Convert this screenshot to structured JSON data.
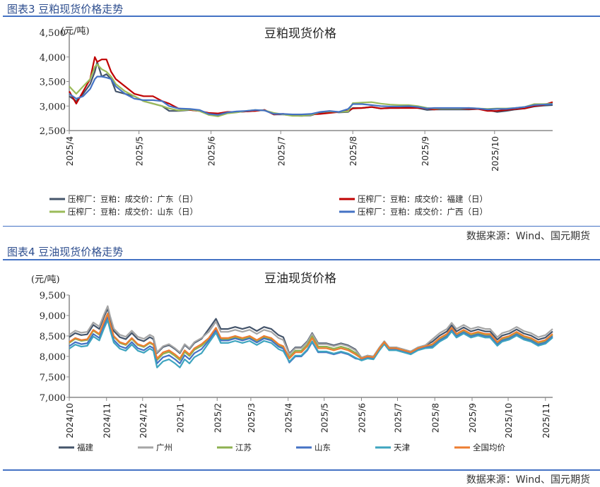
{
  "fig3": {
    "title": "图表3 豆粕现货价格走势",
    "source": "数据来源：Wind、国元期货"
  },
  "fig4": {
    "title": "图表4 豆油现货价格走势",
    "source": "数据来源：Wind、国元期货"
  },
  "chart_data": [
    {
      "type": "line",
      "title": "豆粕现货价格",
      "ylabel": "(元/吨)",
      "ylim": [
        2500,
        4500
      ],
      "yticks": [
        2500,
        3000,
        3500,
        4000,
        4500
      ],
      "ytick_labels": [
        "2,500",
        "3,000",
        "3,500",
        "4,000",
        "4,500"
      ],
      "x_unit": "days since 2025-04-01",
      "xlim": [
        0,
        208
      ],
      "xticks": [
        0,
        30,
        61,
        91,
        122,
        153,
        183
      ],
      "xtick_labels": [
        "2025/4",
        "2025/5",
        "2025/6",
        "2025/7",
        "2025/8",
        "2025/9",
        "2025/10"
      ],
      "legend_position": "bottom",
      "x": [
        0,
        3,
        6,
        9,
        11,
        12,
        14,
        16,
        18,
        20,
        24,
        28,
        32,
        36,
        40,
        43,
        47,
        52,
        56,
        60,
        64,
        68,
        72,
        76,
        80,
        84,
        88,
        92,
        96,
        100,
        104,
        108,
        112,
        116,
        120,
        122,
        126,
        130,
        134,
        138,
        142,
        146,
        150,
        154,
        157,
        160,
        164,
        168,
        172,
        176,
        180,
        184,
        188,
        192,
        196,
        200,
        204,
        208
      ],
      "series": [
        {
          "name": "压榨厂：豆粕：成交价：广东（日）",
          "color": "#44546a",
          "values": [
            3200,
            3100,
            3250,
            3450,
            3700,
            3900,
            3600,
            3650,
            3550,
            3300,
            3250,
            3200,
            3100,
            3050,
            3000,
            2900,
            2900,
            2920,
            2900,
            2830,
            2800,
            2860,
            2880,
            2890,
            2900,
            2920,
            2830,
            2830,
            2810,
            2800,
            2810,
            2870,
            2890,
            2870,
            2880,
            2960,
            2960,
            2980,
            2950,
            2960,
            2960,
            2980,
            2960,
            2920,
            2930,
            2930,
            2930,
            2930,
            2930,
            2940,
            2920,
            2880,
            2900,
            2930,
            2950,
            2990,
            3010,
            3020
          ]
        },
        {
          "name": "压榨厂：豆粕：成交价：福建（日）",
          "color": "#c00000",
          "values": [
            3300,
            3050,
            3300,
            3550,
            4000,
            3900,
            3950,
            3950,
            3700,
            3550,
            3400,
            3250,
            3200,
            3200,
            3100,
            3050,
            2950,
            2920,
            2900,
            2860,
            2850,
            2880,
            2880,
            2890,
            2900,
            2920,
            2830,
            2840,
            2820,
            2820,
            2830,
            2840,
            2860,
            2880,
            2900,
            2950,
            2960,
            2980,
            2950,
            2960,
            2960,
            2960,
            2960,
            2950,
            2930,
            2950,
            2950,
            2950,
            2940,
            2940,
            2900,
            2900,
            2920,
            2940,
            2950,
            3000,
            3020,
            3080
          ]
        },
        {
          "name": "压榨厂：豆粕：成交价：山东（日）",
          "color": "#9bbb59",
          "values": [
            3400,
            3250,
            3400,
            3550,
            3800,
            3850,
            3750,
            3700,
            3600,
            3450,
            3300,
            3200,
            3100,
            3050,
            3000,
            2950,
            2910,
            2930,
            2900,
            2820,
            2790,
            2850,
            2870,
            2900,
            2920,
            2910,
            2860,
            2830,
            2800,
            2800,
            2820,
            2880,
            2890,
            2880,
            2890,
            3060,
            3070,
            3080,
            3050,
            3030,
            3020,
            3020,
            3000,
            2960,
            2950,
            2950,
            2950,
            2950,
            2960,
            2950,
            2940,
            2950,
            2950,
            2960,
            2980,
            3040,
            3040,
            3050
          ]
        },
        {
          "name": "压榨厂：豆粕：成交价：广西（日）",
          "color": "#4472c4",
          "values": [
            3250,
            3150,
            3200,
            3350,
            3550,
            3600,
            3600,
            3580,
            3550,
            3400,
            3250,
            3150,
            3120,
            3120,
            3100,
            3000,
            2950,
            2940,
            2920,
            2840,
            2820,
            2870,
            2890,
            2900,
            2920,
            2910,
            2840,
            2840,
            2830,
            2830,
            2840,
            2880,
            2900,
            2880,
            2940,
            3040,
            3040,
            3020,
            3000,
            2990,
            2990,
            3000,
            2980,
            2950,
            2960,
            2960,
            2960,
            2960,
            2960,
            2950,
            2930,
            2940,
            2940,
            2960,
            2980,
            3020,
            3030,
            3040
          ]
        }
      ]
    },
    {
      "type": "line",
      "title": "豆油现货价格",
      "ylabel": "(元/吨)",
      "ylim": [
        7000,
        9500
      ],
      "yticks": [
        7000,
        7500,
        8000,
        8500,
        9000,
        9500
      ],
      "ytick_labels": [
        "7,000",
        "7,500",
        "8,000",
        "8,500",
        "9,000",
        "9,500"
      ],
      "x_unit": "days since 2024-10-01",
      "xlim": [
        0,
        402
      ],
      "xticks": [
        0,
        31,
        61,
        92,
        123,
        151,
        182,
        212,
        243,
        273,
        304,
        335,
        365,
        396
      ],
      "xtick_labels": [
        "2024/10",
        "2024/11",
        "2024/12",
        "2025/1",
        "2025/2",
        "2025/3",
        "2025/4",
        "2025/5",
        "2025/6",
        "2025/7",
        "2025/8",
        "2025/9",
        "2025/10",
        "2025/11"
      ],
      "legend_position": "bottom",
      "x": [
        0,
        5,
        10,
        15,
        20,
        25,
        29,
        32,
        34,
        37,
        42,
        47,
        52,
        57,
        62,
        67,
        70,
        73,
        78,
        83,
        88,
        92,
        96,
        100,
        104,
        110,
        116,
        122,
        126,
        132,
        138,
        144,
        150,
        156,
        162,
        168,
        174,
        178,
        183,
        188,
        193,
        198,
        202,
        207,
        214,
        220,
        226,
        232,
        238,
        243,
        248,
        253,
        258,
        262,
        266,
        272,
        278,
        284,
        290,
        296,
        302,
        308,
        314,
        318,
        322,
        328,
        334,
        340,
        346,
        350,
        356,
        360,
        366,
        372,
        378,
        384,
        390,
        396,
        402
      ],
      "series": [
        {
          "name": "福建",
          "color": "#44546a",
          "values": [
            8470,
            8570,
            8520,
            8540,
            8770,
            8670,
            8970,
            9170,
            8920,
            8620,
            8470,
            8420,
            8570,
            8420,
            8370,
            8470,
            8420,
            8080,
            8230,
            8280,
            8180,
            8080,
            8280,
            8180,
            8330,
            8430,
            8670,
            8920,
            8670,
            8670,
            8720,
            8670,
            8720,
            8620,
            8720,
            8670,
            8520,
            8470,
            8070,
            8220,
            8220,
            8370,
            8570,
            8320,
            8320,
            8270,
            8320,
            8270,
            8170,
            7970,
            8020,
            8000,
            8220,
            8370,
            8220,
            8220,
            8170,
            8120,
            8220,
            8270,
            8360,
            8510,
            8610,
            8760,
            8610,
            8710,
            8610,
            8660,
            8610,
            8610,
            8410,
            8510,
            8560,
            8660,
            8560,
            8510,
            8410,
            8460,
            8610
          ]
        },
        {
          "name": "广州",
          "color": "#a5a5a5",
          "values": [
            8530,
            8630,
            8580,
            8600,
            8830,
            8730,
            9030,
            9230,
            8980,
            8680,
            8530,
            8480,
            8630,
            8480,
            8430,
            8530,
            8480,
            8100,
            8250,
            8300,
            8200,
            8100,
            8300,
            8200,
            8350,
            8450,
            8600,
            8850,
            8600,
            8600,
            8650,
            8600,
            8650,
            8550,
            8650,
            8600,
            8450,
            8400,
            8050,
            8200,
            8200,
            8350,
            8550,
            8300,
            8300,
            8250,
            8300,
            8250,
            8150,
            7970,
            8020,
            8000,
            8220,
            8370,
            8220,
            8220,
            8170,
            8120,
            8220,
            8270,
            8420,
            8570,
            8670,
            8820,
            8670,
            8770,
            8670,
            8720,
            8670,
            8670,
            8470,
            8570,
            8620,
            8720,
            8620,
            8570,
            8470,
            8520,
            8670
          ]
        },
        {
          "name": "江苏",
          "color": "#8db150",
          "values": [
            8330,
            8430,
            8380,
            8400,
            8630,
            8530,
            8830,
            9030,
            8780,
            8480,
            8330,
            8280,
            8430,
            8280,
            8230,
            8330,
            8280,
            7910,
            8060,
            8110,
            8010,
            7910,
            8110,
            8010,
            8160,
            8260,
            8420,
            8670,
            8420,
            8420,
            8470,
            8420,
            8470,
            8370,
            8470,
            8420,
            8270,
            8220,
            7990,
            8140,
            8140,
            8290,
            8490,
            8240,
            8240,
            8190,
            8240,
            8190,
            8090,
            7950,
            8000,
            7980,
            8200,
            8350,
            8200,
            8200,
            8150,
            8100,
            8200,
            8250,
            8270,
            8420,
            8520,
            8670,
            8520,
            8620,
            8520,
            8570,
            8520,
            8520,
            8320,
            8420,
            8470,
            8570,
            8470,
            8420,
            8320,
            8370,
            8520
          ]
        },
        {
          "name": "山东",
          "color": "#4472c4",
          "values": [
            8250,
            8350,
            8300,
            8320,
            8550,
            8450,
            8750,
            8950,
            8700,
            8400,
            8250,
            8200,
            8350,
            8200,
            8150,
            8250,
            8200,
            7830,
            7980,
            8030,
            7930,
            7830,
            8030,
            7930,
            8080,
            8180,
            8390,
            8640,
            8390,
            8390,
            8440,
            8390,
            8440,
            8340,
            8440,
            8390,
            8240,
            8190,
            7850,
            8000,
            8000,
            8150,
            8350,
            8100,
            8100,
            8050,
            8100,
            8050,
            7950,
            7920,
            7970,
            7950,
            8170,
            8320,
            8170,
            8170,
            8120,
            8070,
            8170,
            8220,
            8240,
            8390,
            8490,
            8640,
            8490,
            8590,
            8490,
            8540,
            8490,
            8490,
            8290,
            8390,
            8440,
            8540,
            8440,
            8390,
            8290,
            8340,
            8490
          ]
        },
        {
          "name": "天津",
          "color": "#3ea4bf",
          "values": [
            8190,
            8290,
            8240,
            8260,
            8490,
            8390,
            8690,
            8890,
            8640,
            8340,
            8190,
            8140,
            8290,
            8140,
            8090,
            8190,
            8140,
            7730,
            7880,
            7930,
            7830,
            7730,
            7930,
            7830,
            7980,
            8080,
            8330,
            8580,
            8330,
            8330,
            8380,
            8330,
            8380,
            8280,
            8380,
            8330,
            8180,
            8130,
            7870,
            8020,
            8020,
            8170,
            8370,
            8120,
            8120,
            8070,
            8120,
            8070,
            7970,
            7900,
            7950,
            7930,
            8150,
            8300,
            8150,
            8150,
            8100,
            8050,
            8150,
            8200,
            8210,
            8360,
            8460,
            8610,
            8460,
            8560,
            8460,
            8510,
            8460,
            8460,
            8260,
            8360,
            8410,
            8510,
            8410,
            8360,
            8260,
            8310,
            8460
          ]
        },
        {
          "name": "全国均价",
          "color": "#ed7d31",
          "values": [
            8350,
            8450,
            8400,
            8420,
            8650,
            8550,
            8850,
            9050,
            8800,
            8500,
            8350,
            8300,
            8450,
            8300,
            8250,
            8350,
            8300,
            7950,
            8100,
            8150,
            8050,
            7950,
            8150,
            8050,
            8200,
            8300,
            8450,
            8700,
            8450,
            8450,
            8500,
            8450,
            8500,
            8400,
            8500,
            8450,
            8300,
            8250,
            7950,
            8100,
            8100,
            8250,
            8450,
            8200,
            8200,
            8150,
            8200,
            8150,
            8050,
            7950,
            8000,
            7980,
            8200,
            8350,
            8200,
            8200,
            8150,
            8100,
            8200,
            8250,
            8300,
            8450,
            8550,
            8700,
            8550,
            8650,
            8550,
            8600,
            8550,
            8550,
            8350,
            8450,
            8500,
            8600,
            8500,
            8450,
            8350,
            8400,
            8550
          ]
        }
      ]
    }
  ]
}
